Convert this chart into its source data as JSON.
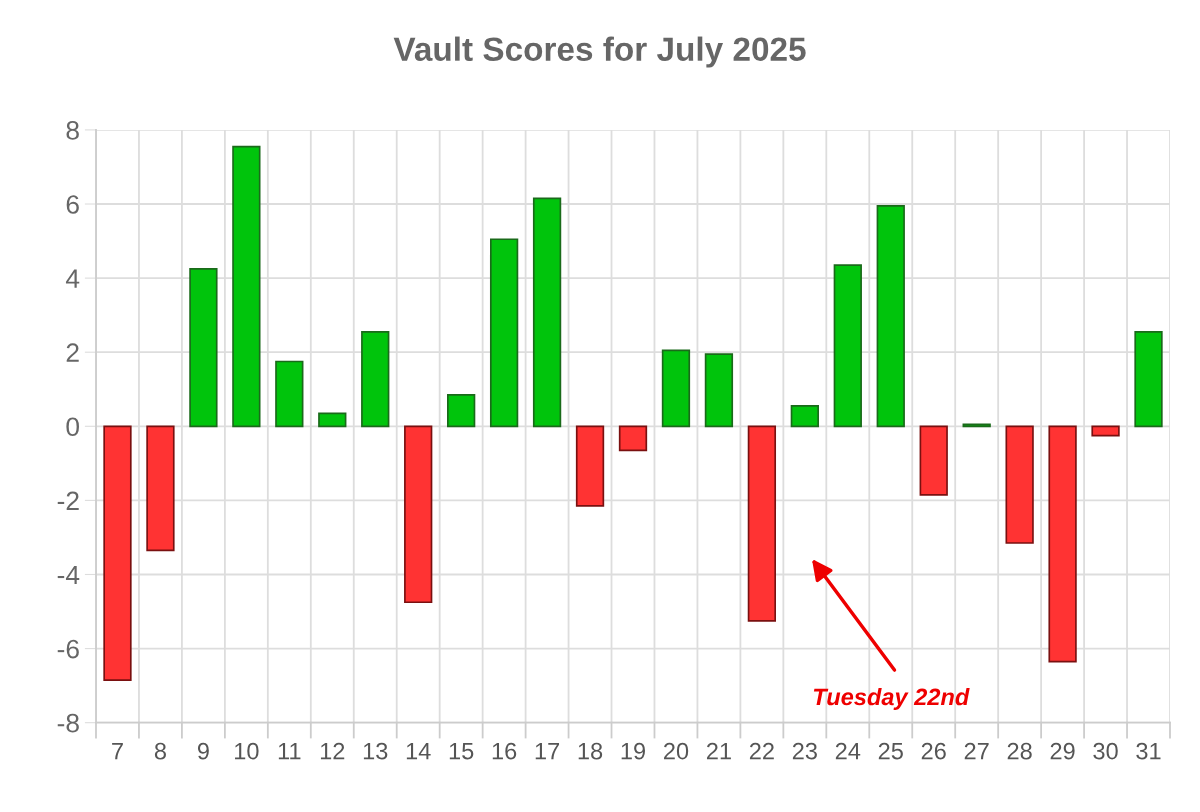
{
  "chart_data": {
    "type": "bar",
    "title": "Vault Scores for July 2025",
    "categories": [
      "7",
      "8",
      "9",
      "10",
      "11",
      "12",
      "13",
      "14",
      "15",
      "16",
      "17",
      "18",
      "19",
      "20",
      "21",
      "22",
      "23",
      "24",
      "25",
      "26",
      "27",
      "28",
      "29",
      "30",
      "31"
    ],
    "values": [
      -6.85,
      -3.35,
      4.25,
      7.55,
      1.75,
      0.35,
      2.55,
      -4.75,
      0.85,
      5.05,
      6.15,
      -2.15,
      -0.65,
      2.05,
      1.95,
      -5.25,
      0.55,
      4.35,
      5.95,
      -1.85,
      0.05,
      -3.15,
      -6.35,
      -0.25,
      2.55
    ],
    "colors": [
      "#ff3333",
      "#ff3333",
      "#00c40c",
      "#00c40c",
      "#00c40c",
      "#00c40c",
      "#00c40c",
      "#ff3333",
      "#00c40c",
      "#00c40c",
      "#00c40c",
      "#ff3333",
      "#ff3333",
      "#00c40c",
      "#00c40c",
      "#ff3333",
      "#00c40c",
      "#00c40c",
      "#00c40c",
      "#ff3333",
      "#00c40c",
      "#ff3333",
      "#ff3333",
      "#ff3333",
      "#00c40c"
    ],
    "ylim": [
      -8,
      8
    ],
    "yticks": [
      -8,
      -6,
      -4,
      -2,
      0,
      2,
      4,
      6,
      8
    ],
    "grid": true,
    "annotations": [
      "Tuesday 22nd"
    ]
  }
}
